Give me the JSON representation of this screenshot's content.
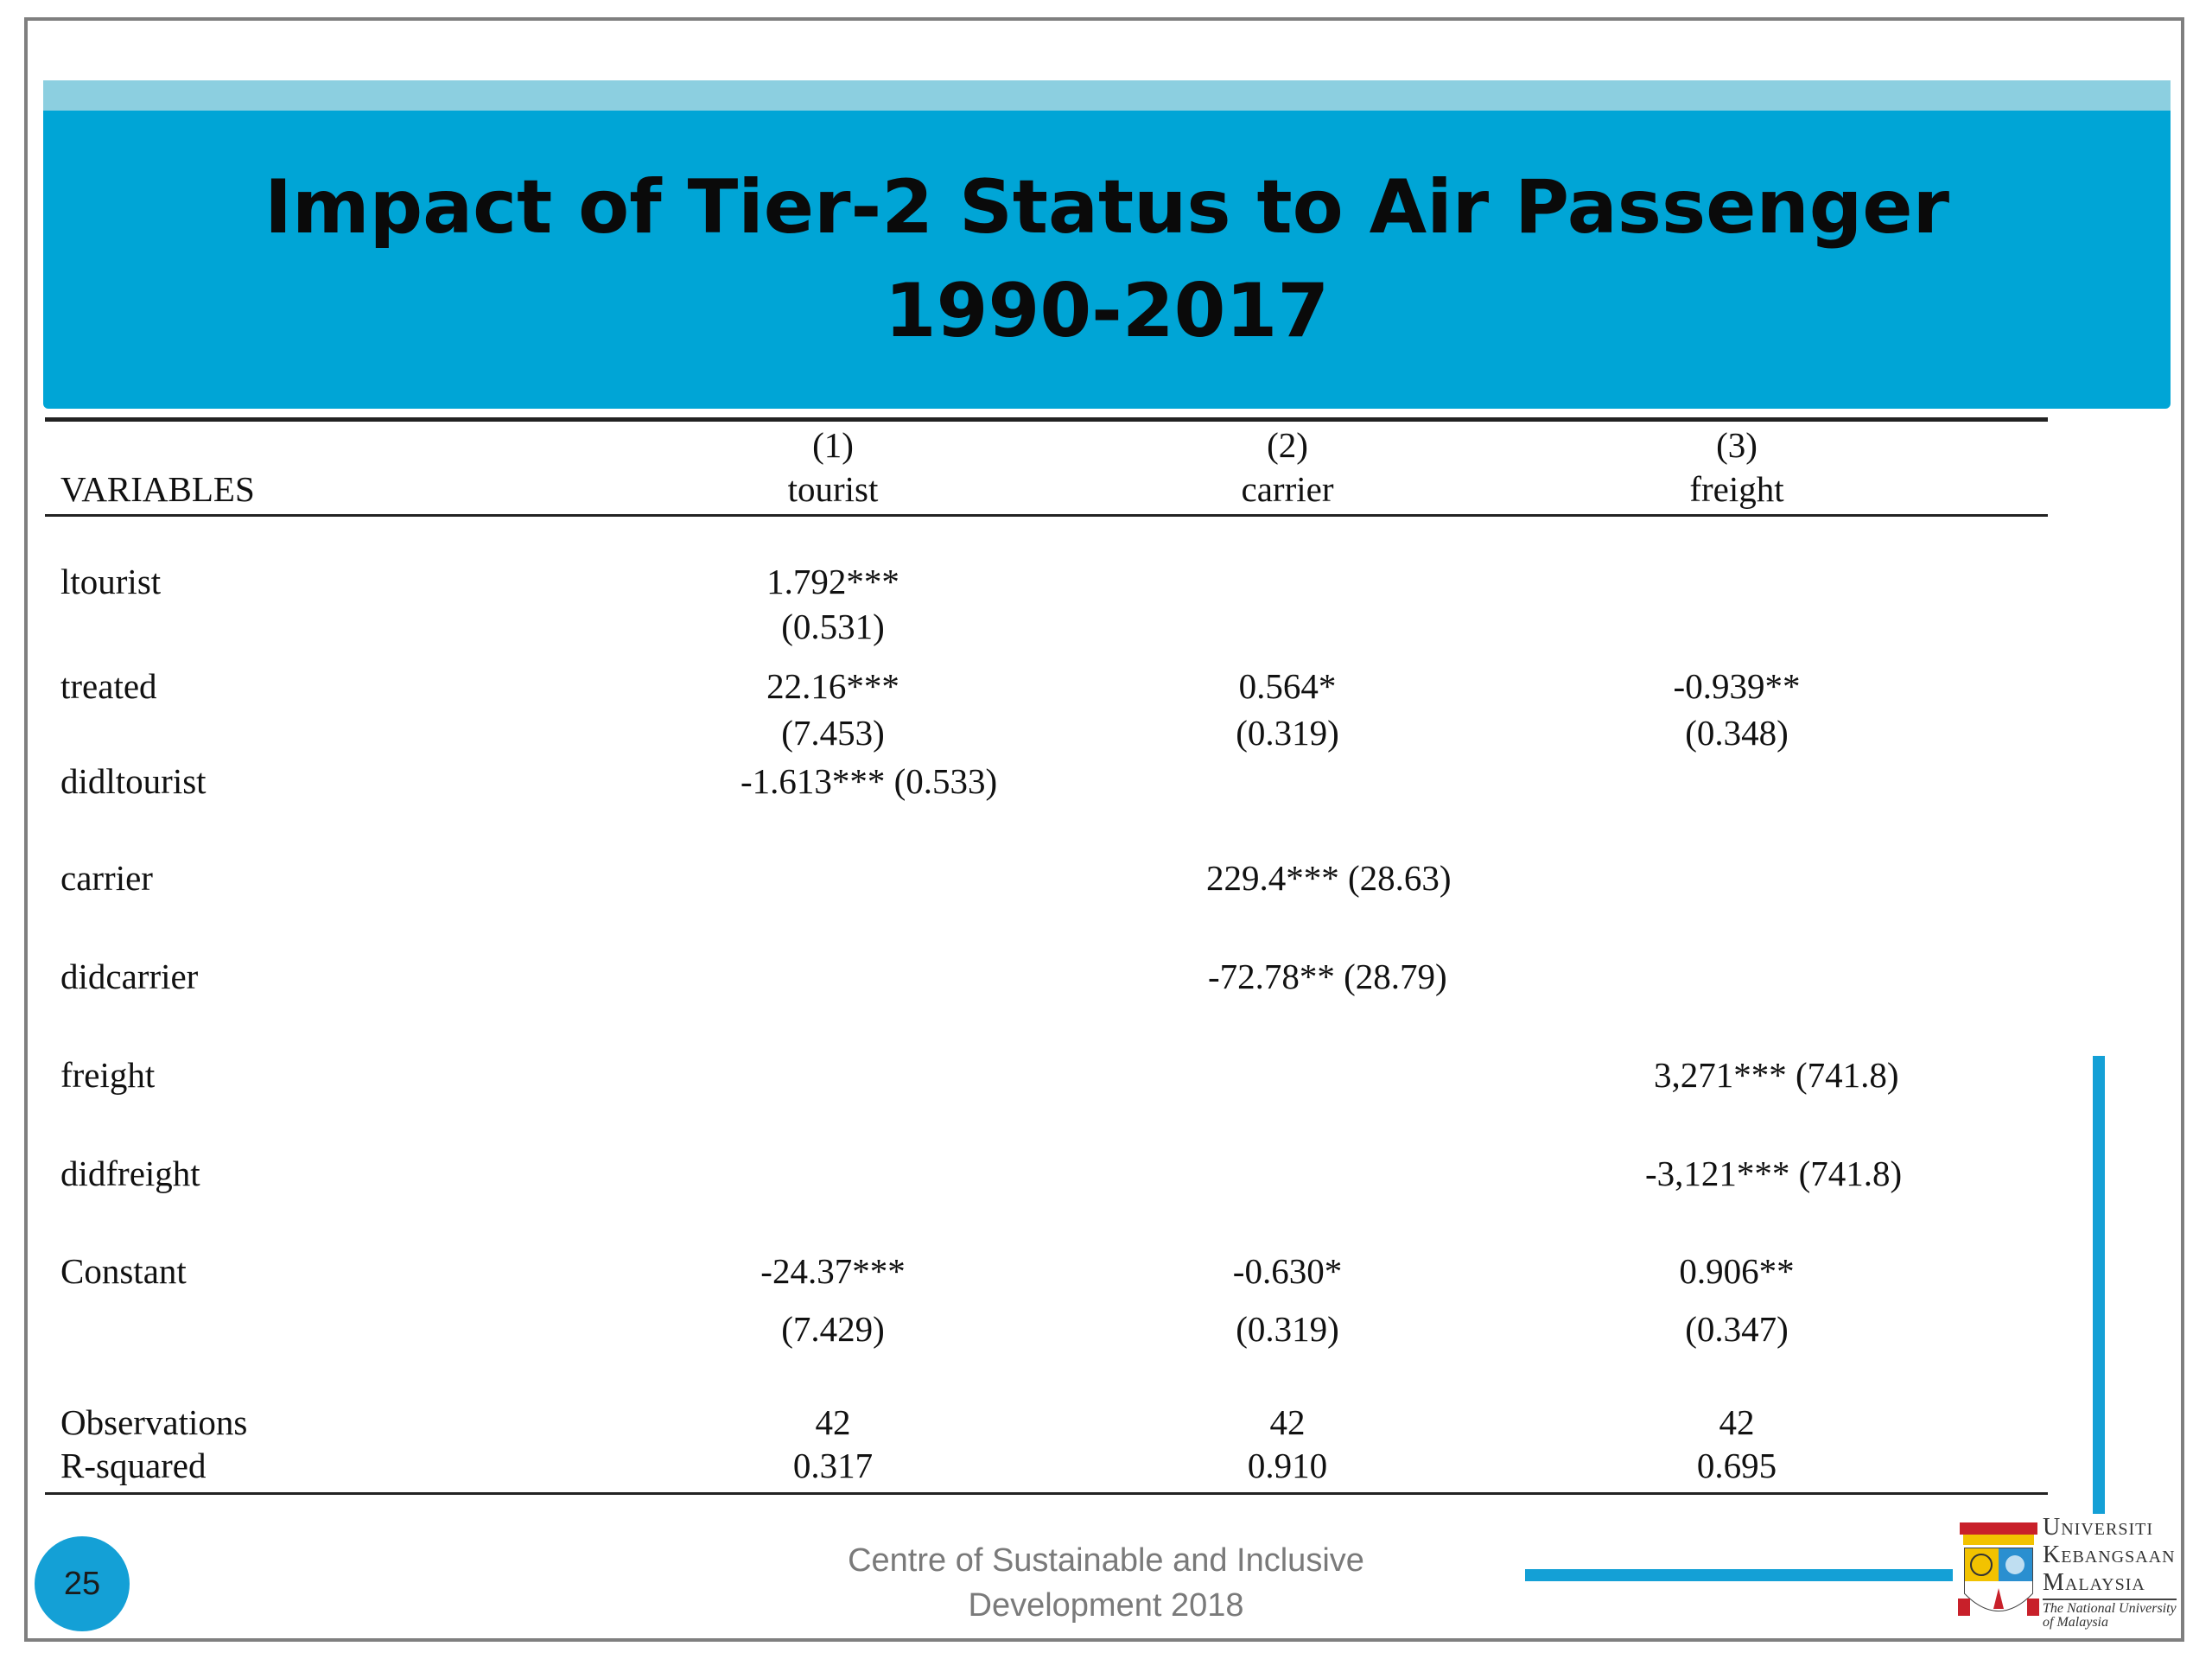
{
  "title": {
    "line1": "Impact of Tier-2 Status to Air Passenger",
    "line2": "1990-2017"
  },
  "table": {
    "header": {
      "variables_label": "VARIABLES",
      "columns": [
        {
          "number": "(1)",
          "name": "tourist"
        },
        {
          "number": "(2)",
          "name": "carrier"
        },
        {
          "number": "(3)",
          "name": "freight"
        }
      ]
    },
    "rows": {
      "ltourist": {
        "label": "ltourist",
        "c1": "1.792***",
        "c1_se": "(0.531)"
      },
      "treated": {
        "label": "treated",
        "c1": "22.16***",
        "c1_se": "(7.453)",
        "c2": "0.564*",
        "c2_se": "(0.319)",
        "c3": "-0.939**",
        "c3_se": "(0.348)"
      },
      "didltourist": {
        "label": "didltourist",
        "c1": "-1.613*** (0.533)"
      },
      "carrier": {
        "label": "carrier",
        "c2": "229.4*** (28.63)"
      },
      "didcarrier": {
        "label": "didcarrier",
        "c2": "-72.78** (28.79)"
      },
      "freight": {
        "label": "freight",
        "c3": "3,271*** (741.8)"
      },
      "didfreight": {
        "label": "didfreight",
        "c3": "-3,121*** (741.8)"
      },
      "constant": {
        "label": "Constant",
        "c1": "-24.37***",
        "c1_se": "(7.429)",
        "c2": "-0.630*",
        "c2_se": "(0.319)",
        "c3": "0.906**",
        "c3_se": "(0.347)"
      },
      "observations": {
        "label": "Observations",
        "c1": "42",
        "c2": "42",
        "c3": "42"
      },
      "rsquared": {
        "label": "R-squared",
        "c1": "0.317",
        "c2": "0.910",
        "c3": "0.695"
      }
    }
  },
  "footer": {
    "line1": "Centre of Sustainable and Inclusive",
    "line2": "Development 2018",
    "page_number": "25"
  },
  "logo": {
    "line1": "Universiti",
    "line2": "Kebangsaan",
    "line3": "Malaysia",
    "tagline1": "The National University",
    "tagline2": "of Malaysia"
  },
  "colors": {
    "banner": "#00a5d6",
    "banner_top": "#8ccfe0",
    "accent": "#14a0d6"
  }
}
